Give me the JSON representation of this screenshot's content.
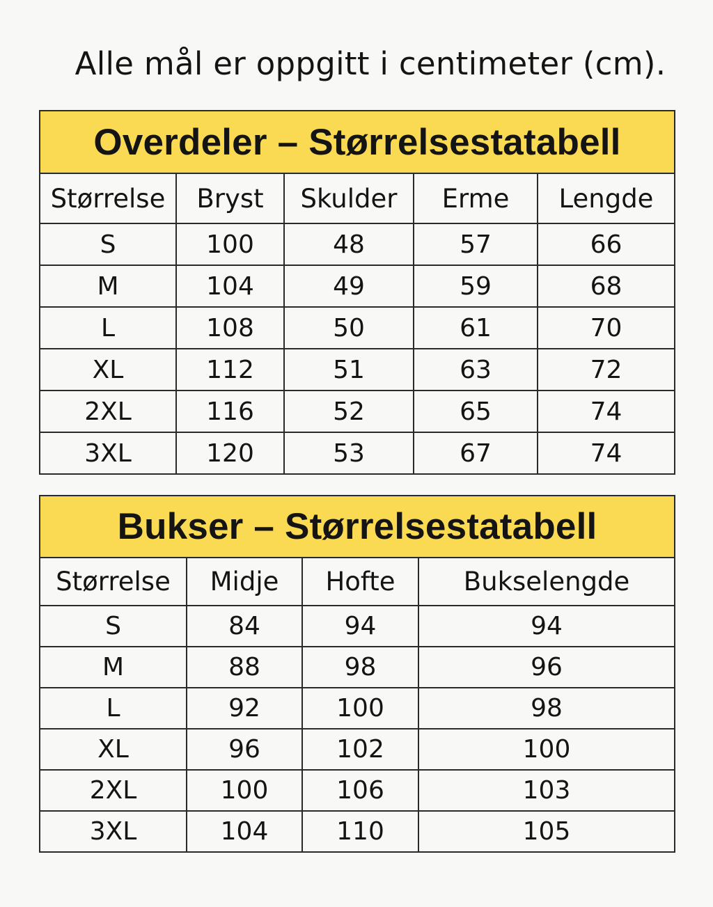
{
  "note": "Alle mål er oppgitt i centimeter (cm).",
  "colors": {
    "header_yellow": "#fada52",
    "border": "#2a2a2a",
    "background": "#f8f8f6",
    "text": "#141414"
  },
  "tops": {
    "title": "Overdeler – Størrelsestatabell",
    "headers": [
      "Størrelse",
      "Bryst",
      "Skulder",
      "Erme",
      "Lengde"
    ],
    "rows": [
      [
        "S",
        "100",
        "48",
        "57",
        "66"
      ],
      [
        "M",
        "104",
        "49",
        "59",
        "68"
      ],
      [
        "L",
        "108",
        "50",
        "61",
        "70"
      ],
      [
        "XL",
        "112",
        "51",
        "63",
        "72"
      ],
      [
        "2XL",
        "116",
        "52",
        "65",
        "74"
      ],
      [
        "3XL",
        "120",
        "53",
        "67",
        "74"
      ]
    ]
  },
  "pants": {
    "title": "Bukser – Størrelsestatabell",
    "headers": [
      "Størrelse",
      "Midje",
      "Hofte",
      "Bukselengde"
    ],
    "rows": [
      [
        "S",
        "84",
        "94",
        "94"
      ],
      [
        "M",
        "88",
        "98",
        "96"
      ],
      [
        "L",
        "92",
        "100",
        "98"
      ],
      [
        "XL",
        "96",
        "102",
        "100"
      ],
      [
        "2XL",
        "100",
        "106",
        "103"
      ],
      [
        "3XL",
        "104",
        "110",
        "105"
      ]
    ]
  }
}
